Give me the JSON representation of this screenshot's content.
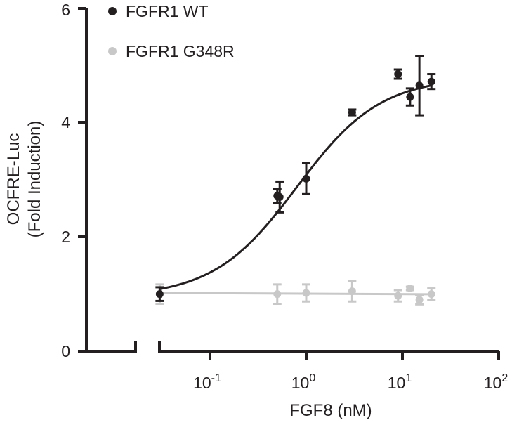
{
  "chart_data": {
    "type": "scatter",
    "xlabel": "FGF8 (nM)",
    "ylabel_line1": "OCFRE-Luc",
    "ylabel_line2": "(Fold Induction)",
    "x_scale": "log",
    "xlim": [
      0.02,
      100
    ],
    "ylim": [
      0,
      6
    ],
    "y_ticks": [
      "0",
      "2",
      "4",
      "6"
    ],
    "x_ticks": [
      {
        "base": "10",
        "exp": "-1",
        "value": 0.1
      },
      {
        "base": "10",
        "exp": "0",
        "value": 1
      },
      {
        "base": "10",
        "exp": "1",
        "value": 10
      },
      {
        "base": "10",
        "exp": "2",
        "value": 100
      }
    ],
    "x_axis_break": true,
    "grid": false,
    "legend_position": "top-left",
    "series": [
      {
        "name": "FGFR1 WT",
        "color": "#231f20",
        "points": [
          {
            "x": 0.03,
            "y": 1.0,
            "err": 0.12
          },
          {
            "x": 0.5,
            "y": 2.72,
            "err": 0.12
          },
          {
            "x": 0.53,
            "y": 2.7,
            "err": 0.27
          },
          {
            "x": 1.0,
            "y": 3.02,
            "err": 0.27
          },
          {
            "x": 3.0,
            "y": 4.18,
            "err": 0.05
          },
          {
            "x": 9.0,
            "y": 4.85,
            "err": 0.08
          },
          {
            "x": 12.0,
            "y": 4.45,
            "err": 0.15
          },
          {
            "x": 15.0,
            "y": 4.65,
            "err": 0.52
          },
          {
            "x": 20.0,
            "y": 4.72,
            "err": 0.13
          }
        ],
        "fit": {
          "bottom": 0.95,
          "top": 4.8,
          "ec50": 0.8,
          "hill": 1.0
        }
      },
      {
        "name": "FGFR1 G348R",
        "color": "#c8c8c8",
        "points": [
          {
            "x": 0.03,
            "y": 1.0,
            "err": 0.17
          },
          {
            "x": 0.5,
            "y": 1.0,
            "err": 0.17
          },
          {
            "x": 1.0,
            "y": 1.02,
            "err": 0.15
          },
          {
            "x": 3.0,
            "y": 1.05,
            "err": 0.18
          },
          {
            "x": 9.0,
            "y": 0.97,
            "err": 0.1
          },
          {
            "x": 12.0,
            "y": 1.1,
            "err": 0.03
          },
          {
            "x": 15.0,
            "y": 0.9,
            "err": 0.08
          },
          {
            "x": 20.0,
            "y": 1.0,
            "err": 0.1
          }
        ],
        "fit": {
          "flat": 1.02,
          "slope_per_decade": -0.008
        }
      }
    ]
  }
}
